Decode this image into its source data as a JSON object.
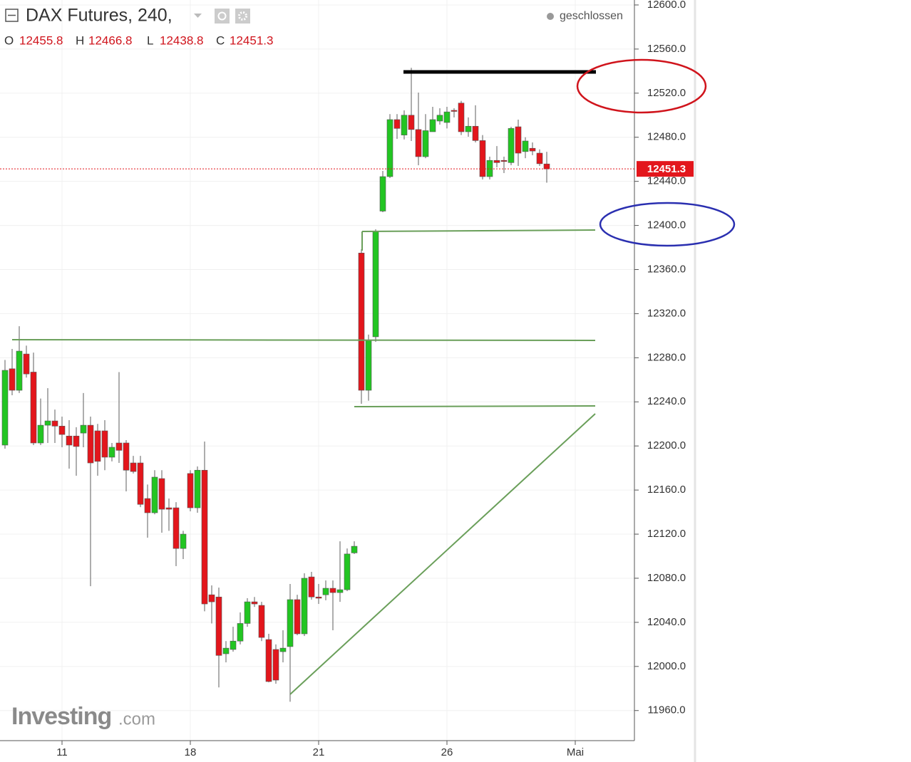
{
  "chart_data": {
    "type": "candlestick",
    "title": "DAX Futures, 240,",
    "status": "geschlossen",
    "ohlc_letters": [
      "O",
      "H",
      "L",
      "C"
    ],
    "watermark": [
      "Investing",
      ".com"
    ],
    "up_color": "#22c522",
    "down_color": "#e3161c",
    "grid": true,
    "ylim": [
      11932.7,
      12604.5
    ],
    "yticks": [
      {
        "value": 11960,
        "label": "11960.0"
      },
      {
        "value": 12000,
        "label": "12000.0"
      },
      {
        "value": 12040,
        "label": "12040.0"
      },
      {
        "value": 12080,
        "label": "12080.0"
      },
      {
        "value": 12120,
        "label": "12120.0"
      },
      {
        "value": 12160,
        "label": "12160.0"
      },
      {
        "value": 12200,
        "label": "12200.0"
      },
      {
        "value": 12240,
        "label": "12240.0"
      },
      {
        "value": 12280,
        "label": "12280.0"
      },
      {
        "value": 12320,
        "label": "12320.0"
      },
      {
        "value": 12360,
        "label": "12360.0"
      },
      {
        "value": 12400,
        "label": "12400.0"
      },
      {
        "value": 12440,
        "label": "12440.0"
      },
      {
        "value": 12480,
        "label": "12480.0"
      },
      {
        "value": 12520,
        "label": "12520.0"
      },
      {
        "value": 12560,
        "label": "12560.0"
      },
      {
        "value": 12600,
        "label": "12600.0"
      }
    ],
    "xlim": [
      -0.7,
      88.3
    ],
    "xticks": [
      {
        "value": 8,
        "label": "11"
      },
      {
        "value": 26,
        "label": "18"
      },
      {
        "value": 44,
        "label": "21"
      },
      {
        "value": 62,
        "label": "26"
      },
      {
        "value": 80,
        "label": "Mai"
      }
    ],
    "open": [
      12200.8,
      12270,
      12250.5,
      12283.4,
      12267,
      12202.7,
      12218.8,
      12222.7,
      12218,
      12209,
      12209,
      12211.7,
      12218.8,
      12213.7,
      12213.7,
      12189.8,
      12202.7,
      12202.7,
      12184.6,
      12184.6,
      12152.3,
      12139.4,
      12170.4,
      12143.9,
      12143.9,
      12107,
      12175,
      12143.9,
      12178,
      12065,
      12063,
      12011.5,
      12015.4,
      12023,
      12039,
      12058.6,
      12055.4,
      12024.4,
      12015.4,
      12013.4,
      12018,
      12060.6,
      12029.6,
      12081.2,
      12063,
      12065,
      12070.9,
      12067,
      12069.6,
      12103,
      12375,
      12250.5,
      12299,
      12413,
      12444.3,
      12496,
      12482,
      12500,
      12487,
      12462.4,
      12485,
      12494.7,
      12493.4,
      12504.4,
      12511,
      12485,
      12490,
      12477,
      12444.3,
      12459,
      12459,
      12457,
      12489.5,
      12467,
      12470,
      12465.6,
      12455.8
    ],
    "high": [
      12278,
      12288,
      12308.6,
      12291,
      12284.7,
      12243,
      12252.4,
      12233,
      12226.6,
      12223.4,
      12217,
      12248,
      12226.6,
      12220,
      12223.4,
      12202.7,
      12267,
      12205.3,
      12191,
      12191,
      12165,
      12178,
      12178,
      12152.3,
      12149,
      12123,
      12178,
      12181.4,
      12204,
      12073.5,
      12071.5,
      12023,
      12036,
      12049,
      12061.9,
      12063,
      12058.6,
      12029.6,
      12020,
      12032.8,
      12074.8,
      12065,
      12084.5,
      12085.8,
      12074.8,
      12078,
      12078,
      12113.5,
      12107,
      12113.5,
      12378.4,
      12301,
      12396.5,
      12449.5,
      12501,
      12501,
      12504.4,
      12543,
      12520.5,
      12501,
      12507.6,
      12506.3,
      12507.6,
      12506.3,
      12513,
      12498,
      12509,
      12482,
      12462.4,
      12472,
      12462.4,
      12489.5,
      12496,
      12480,
      12475.3,
      12469,
      12466.8
    ],
    "low": [
      12197.5,
      12246,
      12248,
      12262,
      12200.8,
      12200.8,
      12202.7,
      12202.7,
      12198.8,
      12179.4,
      12173,
      12198.8,
      12072.8,
      12173,
      12178,
      12186,
      12184.6,
      12158.8,
      12175,
      12144.5,
      12116.8,
      12138,
      12121.3,
      12123,
      12091,
      12097.4,
      12140.7,
      12139.4,
      12050,
      12039,
      11981,
      12003.7,
      12013.4,
      12020,
      12036,
      12054,
      12023,
      11985.6,
      11984.3,
      12003.7,
      11968,
      12028.3,
      12027.6,
      12060.6,
      12056.7,
      12060,
      12032.8,
      12058.6,
      12068.3,
      12102,
      12238.2,
      12241,
      12294.4,
      12412,
      12443,
      12478.5,
      12478,
      12476.6,
      12454.6,
      12461,
      12485,
      12491.5,
      12488,
      12498,
      12482,
      12480.5,
      12475.3,
      12441.7,
      12441.7,
      12452.7,
      12447.5,
      12454.6,
      12454,
      12461,
      12463.7,
      12454,
      12438.8
    ],
    "close": [
      12268.6,
      12250.5,
      12286,
      12265.3,
      12202.7,
      12218.8,
      12222.7,
      12218,
      12210.4,
      12200.8,
      12199.5,
      12218.8,
      12184.6,
      12186,
      12189.8,
      12198.8,
      12196,
      12178,
      12176.8,
      12147,
      12139.4,
      12171.7,
      12142.6,
      12142.6,
      12107,
      12120,
      12143.9,
      12178,
      12056.7,
      12058.6,
      12010,
      12016.6,
      12023,
      12039,
      12058.6,
      12056.7,
      12026.3,
      11986.3,
      11987.6,
      12016.6,
      12060.6,
      12029.6,
      12080,
      12063,
      12061.9,
      12070.9,
      12067,
      12069.6,
      12102,
      12109,
      12250.5,
      12295.7,
      12394.5,
      12444.3,
      12496,
      12488,
      12500,
      12487,
      12462.4,
      12486,
      12496,
      12500,
      12503,
      12503.7,
      12485,
      12490,
      12477,
      12444.3,
      12459,
      12457,
      12458.5,
      12488,
      12465.6,
      12476.6,
      12467.5,
      12456,
      12451.3
    ]
  }
}
